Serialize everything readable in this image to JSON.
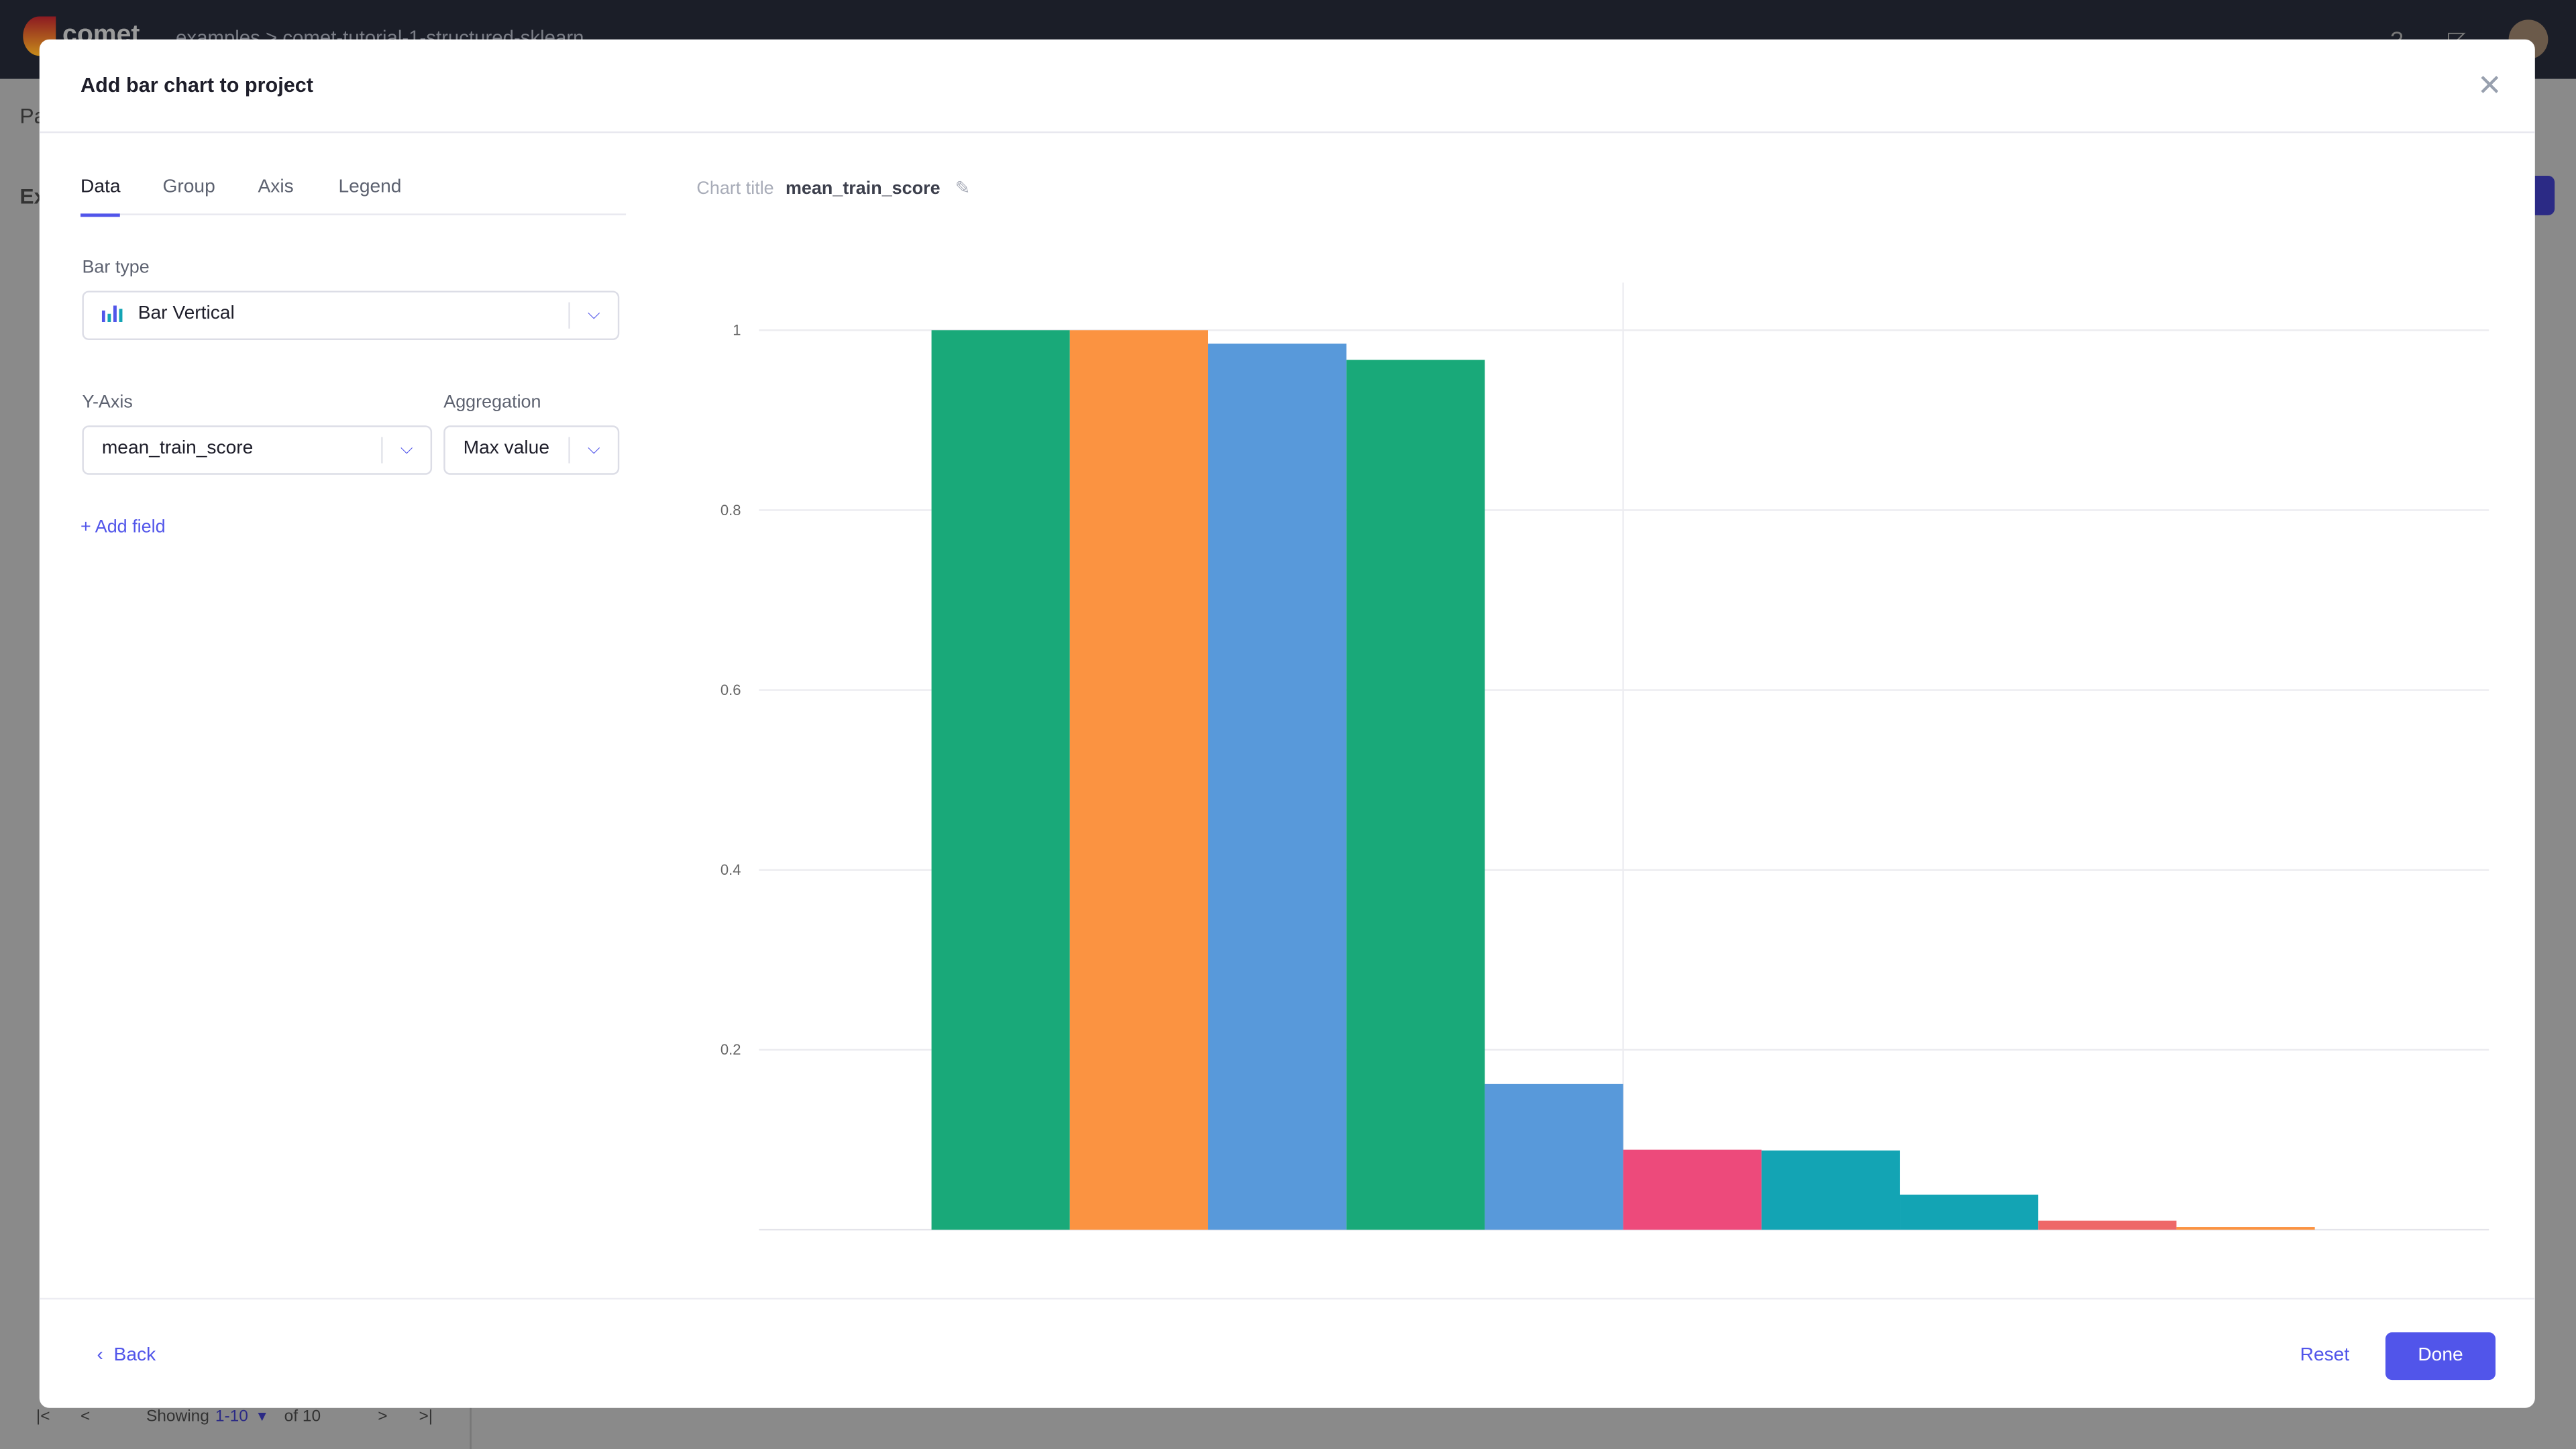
{
  "app": {
    "logo_text": "comet",
    "breadcrumb": [
      "examples",
      "comet-tutorial-1-structured-sklearn"
    ],
    "bg_tab_fragment": "Pa",
    "bg_heading_fragment": "Ex"
  },
  "pager": {
    "showing_label": "Showing",
    "range": "1-10",
    "of_label": "of 10"
  },
  "modal": {
    "title": "Add bar chart to project",
    "tabs": [
      {
        "label": "Data",
        "active": true
      },
      {
        "label": "Group"
      },
      {
        "label": "Axis"
      },
      {
        "label": "Legend"
      }
    ],
    "bar_type": {
      "label": "Bar type",
      "value": "Bar Vertical",
      "icon": "bar-chart-icon"
    },
    "y_axis": {
      "label": "Y-Axis",
      "value": "mean_train_score"
    },
    "aggregation": {
      "label": "Aggregation",
      "value": "Max value"
    },
    "add_field": "+ Add field",
    "chart_title_label": "Chart title",
    "chart_title": "mean_train_score",
    "footer": {
      "back": "Back",
      "reset": "Reset",
      "done": "Done"
    },
    "accent": "#5155ea"
  },
  "chart_data": {
    "type": "bar",
    "title": "",
    "xlabel": "",
    "ylabel": "",
    "ylim": [
      0,
      1.05
    ],
    "yticks": [
      "0.2",
      "0.4",
      "0.6",
      "0.8",
      "1"
    ],
    "grid": true,
    "values": [
      1.0,
      1.0,
      0.985,
      0.967,
      0.162,
      0.089,
      0.088,
      0.039,
      0.01,
      0.003
    ],
    "colors": [
      "#19a979",
      "#fb9341",
      "#5899da",
      "#19a979",
      "#5899da",
      "#ed4a7b",
      "#13a4b4",
      "#13a4b4",
      "#ee6868",
      "#fb9341"
    ]
  }
}
